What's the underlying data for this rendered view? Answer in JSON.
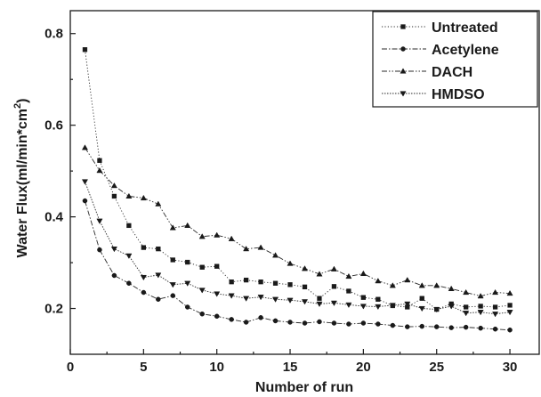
{
  "chart_data": {
    "type": "line",
    "xlabel": "Number of run",
    "ylabel": "Water Flux(ml/min*cm²)",
    "ylabel_main": "Water Flux(ml/min*cm",
    "ylabel_sup": "2",
    "ylabel_end": ")",
    "xlim": [
      0,
      32
    ],
    "ylim": [
      0.1,
      0.85
    ],
    "xticks": [
      0,
      5,
      10,
      15,
      20,
      25,
      30
    ],
    "yticks": [
      0.2,
      0.4,
      0.6,
      0.8
    ],
    "xtick_labels": [
      "0",
      "5",
      "10",
      "15",
      "20",
      "25",
      "30"
    ],
    "ytick_labels": [
      "0.2",
      "0.4",
      "0.6",
      "0.8"
    ],
    "legend_position": "top-right",
    "x": [
      1,
      2,
      3,
      4,
      5,
      6,
      7,
      8,
      9,
      10,
      11,
      12,
      13,
      14,
      15,
      16,
      17,
      18,
      19,
      20,
      21,
      22,
      23,
      24,
      25,
      26,
      27,
      28,
      29,
      30
    ],
    "series": [
      {
        "name": "Untreated",
        "marker": "square",
        "dash": "dot",
        "values": [
          0.765,
          0.523,
          0.445,
          0.381,
          0.333,
          0.33,
          0.306,
          0.301,
          0.29,
          0.292,
          0.258,
          0.262,
          0.258,
          0.255,
          0.252,
          0.247,
          0.222,
          0.248,
          0.238,
          0.224,
          0.22,
          0.206,
          0.203,
          0.222,
          0.198,
          0.21,
          0.203,
          0.205,
          0.203,
          0.207
        ]
      },
      {
        "name": "Acetylene",
        "marker": "circle",
        "dash": "dashdot",
        "values": [
          0.435,
          0.328,
          0.272,
          0.255,
          0.235,
          0.22,
          0.228,
          0.203,
          0.188,
          0.183,
          0.176,
          0.17,
          0.18,
          0.173,
          0.17,
          0.168,
          0.171,
          0.168,
          0.166,
          0.168,
          0.166,
          0.163,
          0.16,
          0.161,
          0.16,
          0.158,
          0.159,
          0.157,
          0.155,
          0.153
        ]
      },
      {
        "name": "DACH",
        "marker": "triangle-up",
        "dash": "dashdotdot",
        "values": [
          0.551,
          0.501,
          0.468,
          0.445,
          0.441,
          0.428,
          0.376,
          0.381,
          0.357,
          0.36,
          0.352,
          0.33,
          0.333,
          0.316,
          0.298,
          0.287,
          0.275,
          0.286,
          0.27,
          0.276,
          0.26,
          0.25,
          0.262,
          0.25,
          0.25,
          0.243,
          0.235,
          0.227,
          0.235,
          0.233
        ]
      },
      {
        "name": "HMDSO",
        "marker": "triangle-down",
        "dash": "dotdot",
        "values": [
          0.477,
          0.391,
          0.33,
          0.315,
          0.268,
          0.273,
          0.252,
          0.255,
          0.24,
          0.232,
          0.228,
          0.222,
          0.225,
          0.22,
          0.218,
          0.215,
          0.21,
          0.212,
          0.208,
          0.205,
          0.204,
          0.207,
          0.21,
          0.2,
          0.198,
          0.205,
          0.19,
          0.192,
          0.188,
          0.192
        ]
      }
    ]
  }
}
